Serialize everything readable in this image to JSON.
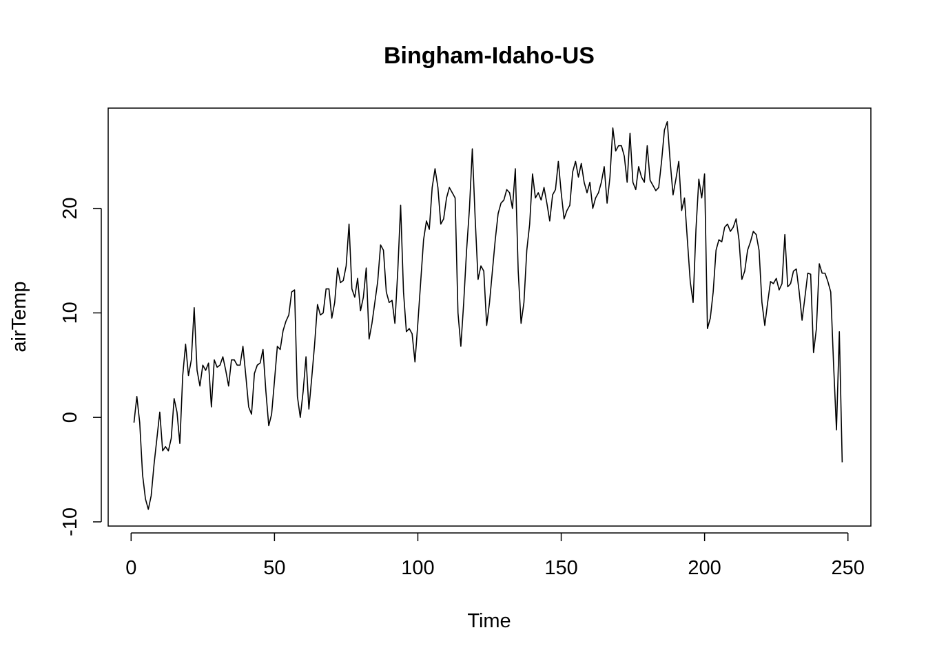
{
  "chart_data": {
    "type": "line",
    "title": "Bingham-Idaho-US",
    "xlabel": "Time",
    "ylabel": "airTemp",
    "xlim": [
      -8,
      258
    ],
    "ylim": [
      -10.4,
      29.6
    ],
    "x_ticks": [
      0,
      50,
      100,
      150,
      200,
      250
    ],
    "y_ticks": [
      -10,
      0,
      10,
      20
    ],
    "x_tick_labels": [
      "0",
      "50",
      "100",
      "150",
      "200",
      "250"
    ],
    "y_tick_labels": [
      "-10",
      "0",
      "10",
      "20"
    ],
    "grid": false,
    "legend": "none",
    "line_color": "#000000",
    "series": [
      {
        "x_start": 1,
        "x_step": 1,
        "values": [
          -0.5,
          2.0,
          -0.5,
          -5.5,
          -7.8,
          -8.8,
          -7.5,
          -4.5,
          -2.0,
          0.5,
          -3.2,
          -2.8,
          -3.2,
          -2.0,
          1.8,
          0.5,
          -2.5,
          4.0,
          7.0,
          4.0,
          5.5,
          10.5,
          4.5,
          3.0,
          5.0,
          4.5,
          5.2,
          1.0,
          5.5,
          4.8,
          5.0,
          5.8,
          4.5,
          3.0,
          5.5,
          5.5,
          5.0,
          5.0,
          6.8,
          4.0,
          1.0,
          0.3,
          4.2,
          5.0,
          5.2,
          6.5,
          2.5,
          -0.8,
          0.3,
          3.5,
          6.8,
          6.5,
          8.3,
          9.2,
          9.8,
          12.0,
          12.2,
          2.0,
          0.0,
          2.5,
          5.8,
          0.8,
          3.8,
          7.0,
          10.8,
          9.8,
          10.0,
          12.3,
          12.3,
          9.5,
          11.0,
          14.3,
          12.9,
          13.1,
          14.5,
          18.5,
          12.3,
          11.5,
          13.3,
          10.2,
          11.5,
          14.3,
          7.5,
          9.0,
          11.0,
          13.0,
          16.5,
          16.0,
          12.0,
          11.0,
          11.2,
          9.0,
          14.0,
          20.3,
          12.0,
          8.2,
          8.5,
          8.0,
          5.3,
          9.0,
          13.0,
          17.0,
          18.8,
          18.0,
          22.0,
          23.8,
          22.0,
          18.5,
          19.0,
          21.0,
          22.0,
          21.5,
          21.0,
          10.0,
          6.8,
          11.0,
          16.0,
          20.0,
          25.7,
          19.0,
          13.2,
          14.5,
          14.0,
          8.8,
          11.0,
          14.0,
          17.0,
          19.5,
          20.5,
          20.8,
          21.8,
          21.5,
          20.0,
          23.8,
          14.0,
          9.0,
          11.0,
          16.0,
          18.5,
          23.3,
          21.0,
          21.5,
          20.8,
          22.0,
          20.5,
          18.8,
          21.3,
          21.8,
          24.5,
          21.5,
          19.0,
          19.8,
          20.3,
          23.5,
          24.5,
          23.0,
          24.3,
          22.5,
          21.5,
          22.5,
          20.0,
          21.0,
          21.5,
          22.5,
          24.0,
          20.5,
          23.0,
          27.7,
          25.5,
          26.0,
          26.0,
          25.0,
          22.5,
          27.2,
          22.5,
          21.8,
          24.0,
          23.0,
          22.5,
          26.0,
          22.7,
          22.2,
          21.7,
          22.0,
          24.5,
          27.5,
          28.3,
          24.5,
          21.3,
          22.8,
          24.5,
          19.8,
          21.0,
          17.0,
          13.0,
          11.0,
          18.0,
          22.8,
          21.0,
          23.3,
          8.5,
          9.5,
          12.0,
          16.0,
          17.0,
          16.8,
          18.2,
          18.5,
          17.8,
          18.2,
          19.0,
          17.0,
          13.2,
          14.0,
          16.0,
          16.8,
          17.8,
          17.5,
          16.0,
          11.0,
          8.8,
          11.0,
          13.0,
          12.8,
          13.3,
          12.2,
          12.8,
          17.5,
          12.5,
          12.8,
          14.0,
          14.2,
          12.0,
          9.3,
          11.5,
          13.8,
          13.7,
          6.2,
          8.5,
          14.7,
          13.8,
          13.8,
          13.0,
          12.0,
          5.0,
          -1.2,
          8.2,
          -4.3
        ]
      }
    ]
  }
}
